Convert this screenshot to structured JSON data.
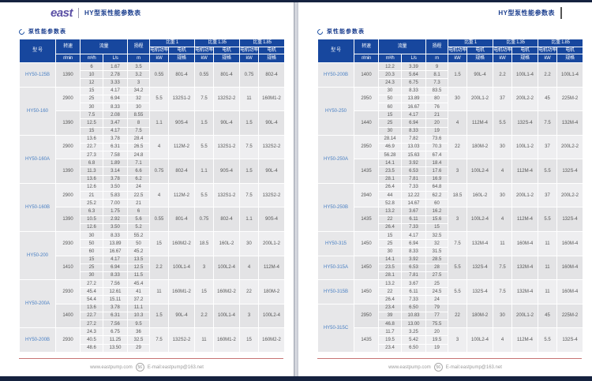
{
  "shared": {
    "logo_text": "east",
    "header_title": "HY型泵性能参数表",
    "section_title": "泵性能参数表",
    "footer": {
      "website": "www.eastpump.com",
      "page_number": "56",
      "email": "E-mail:eastpump@163.net"
    },
    "table_header": {
      "model": "型 号",
      "speed": "转速",
      "speed_unit": "r/min",
      "flow": "流量",
      "flow_unit_m3h": "m³/h",
      "flow_unit_ls": "L/s",
      "head": "扬程",
      "head_unit": "m",
      "gravity_1": "比重 1",
      "gravity_135": "比重 1.35",
      "gravity_185": "比重 1.85",
      "motor_power": "电机功率",
      "motor_power_unit": "kW",
      "motor_spec_line1": "电机",
      "motor_spec_line2": "规格"
    },
    "colors": {
      "header_bg": "#17479e",
      "model_text": "#4a80c4",
      "divider_line": "#c87474",
      "page_edge": "#15223f"
    }
  },
  "left_table": {
    "models": [
      {
        "model": "HY50-125B",
        "groups": [
          {
            "speed": "1390",
            "rows": [
              [
                "6",
                "1.67",
                "3.5"
              ],
              [
                "10",
                "2.78",
                "3.2"
              ],
              [
                "12",
                "3.33",
                "3"
              ]
            ],
            "motors": [
              [
                "0.55",
                "801-4"
              ],
              [
                "0.55",
                "801-4"
              ],
              [
                "0.75",
                "802-4"
              ]
            ]
          }
        ]
      },
      {
        "model": "HY50-160",
        "groups": [
          {
            "speed": "2900",
            "rows": [
              [
                "15",
                "4.17",
                "34.2"
              ],
              [
                "25",
                "6.94",
                "32"
              ],
              [
                "30",
                "8.33",
                "30"
              ]
            ],
            "motors": [
              [
                "5.5",
                "132S1-2"
              ],
              [
                "7.5",
                "132S2-2"
              ],
              [
                "11",
                "160M1-2"
              ]
            ]
          },
          {
            "speed": "1390",
            "rows": [
              [
                "7.5",
                "2.08",
                "8.55"
              ],
              [
                "12.5",
                "3.47",
                "8"
              ],
              [
                "15",
                "4.17",
                "7.5"
              ]
            ],
            "motors": [
              [
                "1.1",
                "90S-4"
              ],
              [
                "1.5",
                "90L-4"
              ],
              [
                "1.5",
                "90L-4"
              ]
            ]
          }
        ]
      },
      {
        "model": "HY50-160A",
        "groups": [
          {
            "speed": "2900",
            "rows": [
              [
                "13.6",
                "3.78",
                "28.4"
              ],
              [
                "22.7",
                "6.31",
                "26.5"
              ],
              [
                "27.3",
                "7.58",
                "24.8"
              ]
            ],
            "motors": [
              [
                "4",
                "112M-2"
              ],
              [
                "5.5",
                "132S1-2"
              ],
              [
                "7.5",
                "132S2-2"
              ]
            ]
          },
          {
            "speed": "1390",
            "rows": [
              [
                "6.8",
                "1.89",
                "7.1"
              ],
              [
                "11.3",
                "3.14",
                "6.6"
              ],
              [
                "13.6",
                "3.78",
                "6.2"
              ]
            ],
            "motors": [
              [
                "0.75",
                "802-4"
              ],
              [
                "1.1",
                "90S-4"
              ],
              [
                "1.5",
                "90L-4"
              ]
            ]
          }
        ]
      },
      {
        "model": "HY50-160B",
        "groups": [
          {
            "speed": "2900",
            "rows": [
              [
                "12.6",
                "3.50",
                "24"
              ],
              [
                "21",
                "5.83",
                "22.5"
              ],
              [
                "25.2",
                "7.00",
                "21"
              ]
            ],
            "motors": [
              [
                "4",
                "112M-2"
              ],
              [
                "5.5",
                "132S1-2"
              ],
              [
                "7.5",
                "132S2-2"
              ]
            ]
          },
          {
            "speed": "1390",
            "rows": [
              [
                "6.3",
                "1.75",
                "6"
              ],
              [
                "10.5",
                "2.92",
                "5.6"
              ],
              [
                "12.6",
                "3.50",
                "5.2"
              ]
            ],
            "motors": [
              [
                "0.55",
                "801-4"
              ],
              [
                "0.75",
                "802-4"
              ],
              [
                "1.1",
                "90S-4"
              ]
            ]
          }
        ]
      },
      {
        "model": "HY50-200",
        "groups": [
          {
            "speed": "2930",
            "rows": [
              [
                "30",
                "8.33",
                "55.2"
              ],
              [
                "50",
                "13.89",
                "50"
              ],
              [
                "60",
                "16.67",
                "45.2"
              ]
            ],
            "motors": [
              [
                "15",
                "160M2-2"
              ],
              [
                "18.5",
                "160L-2"
              ],
              [
                "30",
                "200L1-2"
              ]
            ]
          },
          {
            "speed": "1410",
            "rows": [
              [
                "15",
                "4.17",
                "13.5"
              ],
              [
                "25",
                "6.94",
                "12.5"
              ],
              [
                "30",
                "8.33",
                "11.5"
              ]
            ],
            "motors": [
              [
                "2.2",
                "100L1-4"
              ],
              [
                "3",
                "100L2-4"
              ],
              [
                "4",
                "112M-4"
              ]
            ]
          }
        ]
      },
      {
        "model": "HY50-200A",
        "groups": [
          {
            "speed": "2930",
            "rows": [
              [
                "27.2",
                "7.56",
                "45.4"
              ],
              [
                "45.4",
                "12.61",
                "41"
              ],
              [
                "54.4",
                "15.11",
                "37.2"
              ]
            ],
            "motors": [
              [
                "11",
                "160M1-2"
              ],
              [
                "15",
                "160M2-2"
              ],
              [
                "22",
                "180M-2"
              ]
            ]
          },
          {
            "speed": "1400",
            "rows": [
              [
                "13.6",
                "3.78",
                "11.1"
              ],
              [
                "22.7",
                "6.31",
                "10.3"
              ],
              [
                "27.2",
                "7.56",
                "9.5"
              ]
            ],
            "motors": [
              [
                "1.5",
                "90L-4"
              ],
              [
                "2.2",
                "100L1-4"
              ],
              [
                "3",
                "100L2-4"
              ]
            ]
          }
        ]
      },
      {
        "model": "HY50-200B",
        "groups": [
          {
            "speed": "2930",
            "rows": [
              [
                "24.3",
                "6.75",
                "36"
              ],
              [
                "40.5",
                "11.25",
                "32.5"
              ],
              [
                "48.6",
                "13.50",
                "29"
              ]
            ],
            "motors": [
              [
                "7.5",
                "132S2-2"
              ],
              [
                "11",
                "160M1-2"
              ],
              [
                "15",
                "160M2-2"
              ]
            ]
          }
        ]
      }
    ]
  },
  "right_table": {
    "models": [
      {
        "model": "HY50-200B",
        "groups": [
          {
            "speed": "1400",
            "rows": [
              [
                "12.2",
                "3.39",
                "9"
              ],
              [
                "20.3",
                "5.64",
                "8.1"
              ],
              [
                "24.3",
                "6.75",
                "7.3"
              ]
            ],
            "motors": [
              [
                "1.5",
                "90L-4"
              ],
              [
                "2.2",
                "100L1-4"
              ],
              [
                "2.2",
                "100L1-4"
              ]
            ]
          }
        ]
      },
      {
        "model": "HY50-250",
        "groups": [
          {
            "speed": "2950",
            "rows": [
              [
                "30",
                "8.33",
                "83.5"
              ],
              [
                "50",
                "13.89",
                "80"
              ],
              [
                "60",
                "16.67",
                "76"
              ]
            ],
            "motors": [
              [
                "30",
                "200L1-2"
              ],
              [
                "37",
                "200L2-2"
              ],
              [
                "45",
                "225M-2"
              ]
            ]
          },
          {
            "speed": "1440",
            "rows": [
              [
                "15",
                "4.17",
                "21"
              ],
              [
                "25",
                "6.94",
                "20"
              ],
              [
                "30",
                "8.33",
                "19"
              ]
            ],
            "motors": [
              [
                "4",
                "112M-4"
              ],
              [
                "5.5",
                "132S-4"
              ],
              [
                "7.5",
                "132M-4"
              ]
            ]
          }
        ]
      },
      {
        "model": "HY50-250A",
        "groups": [
          {
            "speed": "2950",
            "rows": [
              [
                "28.14",
                "7.82",
                "73.6"
              ],
              [
                "46.9",
                "13.03",
                "70.3"
              ],
              [
                "56.28",
                "15.63",
                "67.4"
              ]
            ],
            "motors": [
              [
                "22",
                "180M-2"
              ],
              [
                "30",
                "100L1-2"
              ],
              [
                "37",
                "200L2-2"
              ]
            ]
          },
          {
            "speed": "1435",
            "rows": [
              [
                "14.1",
                "3.92",
                "18.4"
              ],
              [
                "23.5",
                "6.53",
                "17.6"
              ],
              [
                "28.1",
                "7.81",
                "16.9"
              ]
            ],
            "motors": [
              [
                "3",
                "100L2-4"
              ],
              [
                "4",
                "112M-4"
              ],
              [
                "5.5",
                "132S-4"
              ]
            ]
          }
        ]
      },
      {
        "model": "HY50-250B",
        "groups": [
          {
            "speed": "2940",
            "rows": [
              [
                "26.4",
                "7.33",
                "64.8"
              ],
              [
                "44",
                "12.22",
                "62.2"
              ],
              [
                "52.8",
                "14.67",
                "60"
              ]
            ],
            "motors": [
              [
                "18.5",
                "160L-2"
              ],
              [
                "30",
                "200L1-2"
              ],
              [
                "37",
                "200L2-2"
              ]
            ]
          },
          {
            "speed": "1435",
            "rows": [
              [
                "13.2",
                "3.67",
                "16.2"
              ],
              [
                "22",
                "6.11",
                "15.6"
              ],
              [
                "26.4",
                "7.33",
                "15"
              ]
            ],
            "motors": [
              [
                "3",
                "100L2-4"
              ],
              [
                "4",
                "112M-4"
              ],
              [
                "5.5",
                "132S-4"
              ]
            ]
          }
        ]
      },
      {
        "model": "HY50-315",
        "groups": [
          {
            "speed": "1450",
            "rows": [
              [
                "15",
                "4.17",
                "32.5"
              ],
              [
                "25",
                "6.94",
                "32"
              ],
              [
                "30",
                "8.33",
                "31.5"
              ]
            ],
            "motors": [
              [
                "7.5",
                "132M-4"
              ],
              [
                "11",
                "160M-4"
              ],
              [
                "11",
                "160M-4"
              ]
            ]
          }
        ]
      },
      {
        "model": "HY50-315A",
        "groups": [
          {
            "speed": "1450",
            "rows": [
              [
                "14.1",
                "3.92",
                "28.5"
              ],
              [
                "23.5",
                "6.53",
                "28"
              ],
              [
                "28.1",
                "7.81",
                "27.5"
              ]
            ],
            "motors": [
              [
                "5.5",
                "132S-4"
              ],
              [
                "7.5",
                "132M-4"
              ],
              [
                "11",
                "160M-4"
              ]
            ]
          }
        ]
      },
      {
        "model": "HY50-315B",
        "groups": [
          {
            "speed": "1450",
            "rows": [
              [
                "13.2",
                "3.67",
                "25"
              ],
              [
                "22",
                "6.11",
                "24.5"
              ],
              [
                "26.4",
                "7.33",
                "24"
              ]
            ],
            "motors": [
              [
                "5.5",
                "132S-4"
              ],
              [
                "7.5",
                "132M-4"
              ],
              [
                "11",
                "160M-4"
              ]
            ]
          }
        ]
      },
      {
        "model": "HY50-315C",
        "groups": [
          {
            "speed": "2950",
            "rows": [
              [
                "23.4",
                "6.50",
                "79"
              ],
              [
                "39",
                "10.83",
                "77"
              ],
              [
                "46.8",
                "13.00",
                "75.5"
              ]
            ],
            "motors": [
              [
                "22",
                "180M-2"
              ],
              [
                "30",
                "200L1-2"
              ],
              [
                "45",
                "225M-2"
              ]
            ]
          },
          {
            "speed": "1435",
            "rows": [
              [
                "11.7",
                "3.25",
                "20"
              ],
              [
                "19.5",
                "5.42",
                "19.5"
              ],
              [
                "23.4",
                "6.50",
                "19"
              ]
            ],
            "motors": [
              [
                "3",
                "100L2-4"
              ],
              [
                "4",
                "112M-4"
              ],
              [
                "5.5",
                "132S-4"
              ]
            ]
          }
        ]
      }
    ]
  }
}
